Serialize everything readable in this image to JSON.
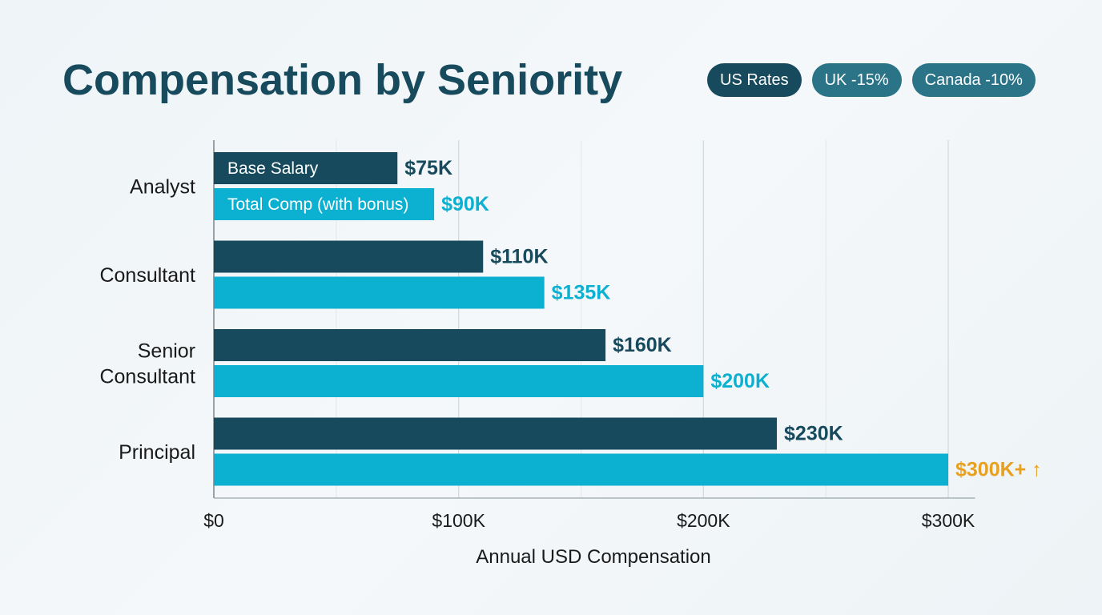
{
  "header": {
    "title": "Compensation by Seniority"
  },
  "filters": [
    {
      "label": "US Rates",
      "active": true
    },
    {
      "label": "UK -15%",
      "active": false
    },
    {
      "label": "Canada -10%",
      "active": false
    }
  ],
  "colors": {
    "base": "#164a5c",
    "total": "#0cb0d0",
    "highlight": "#e8a020",
    "text": "#1a1a1a",
    "grid": "#d0d8dc"
  },
  "chart_data": {
    "type": "bar",
    "orientation": "horizontal",
    "categories": [
      [
        "Analyst"
      ],
      [
        "Consultant"
      ],
      [
        "Senior",
        "Consultant"
      ],
      [
        "Principal"
      ]
    ],
    "series": [
      {
        "name": "Base Salary",
        "values": [
          75,
          110,
          160,
          230
        ],
        "labels": [
          "$75K",
          "$110K",
          "$160K",
          "$230K"
        ]
      },
      {
        "name": "Total Comp (with bonus)",
        "values": [
          90,
          135,
          200,
          300
        ],
        "labels": [
          "$90K",
          "$135K",
          "$200K",
          "$300K+ ↑"
        ]
      }
    ],
    "highlight_label": {
      "series": 1,
      "index": 3
    },
    "xlabel": "Annual USD Compensation",
    "xticks": [
      0,
      100,
      200,
      300
    ],
    "xtick_labels": [
      "$0",
      "$100K",
      "$200K",
      "$300K"
    ],
    "xlim": [
      0,
      310
    ],
    "minor_gridlines": [
      50,
      150,
      250
    ],
    "grid": true,
    "legend": "inside-first-bars"
  }
}
